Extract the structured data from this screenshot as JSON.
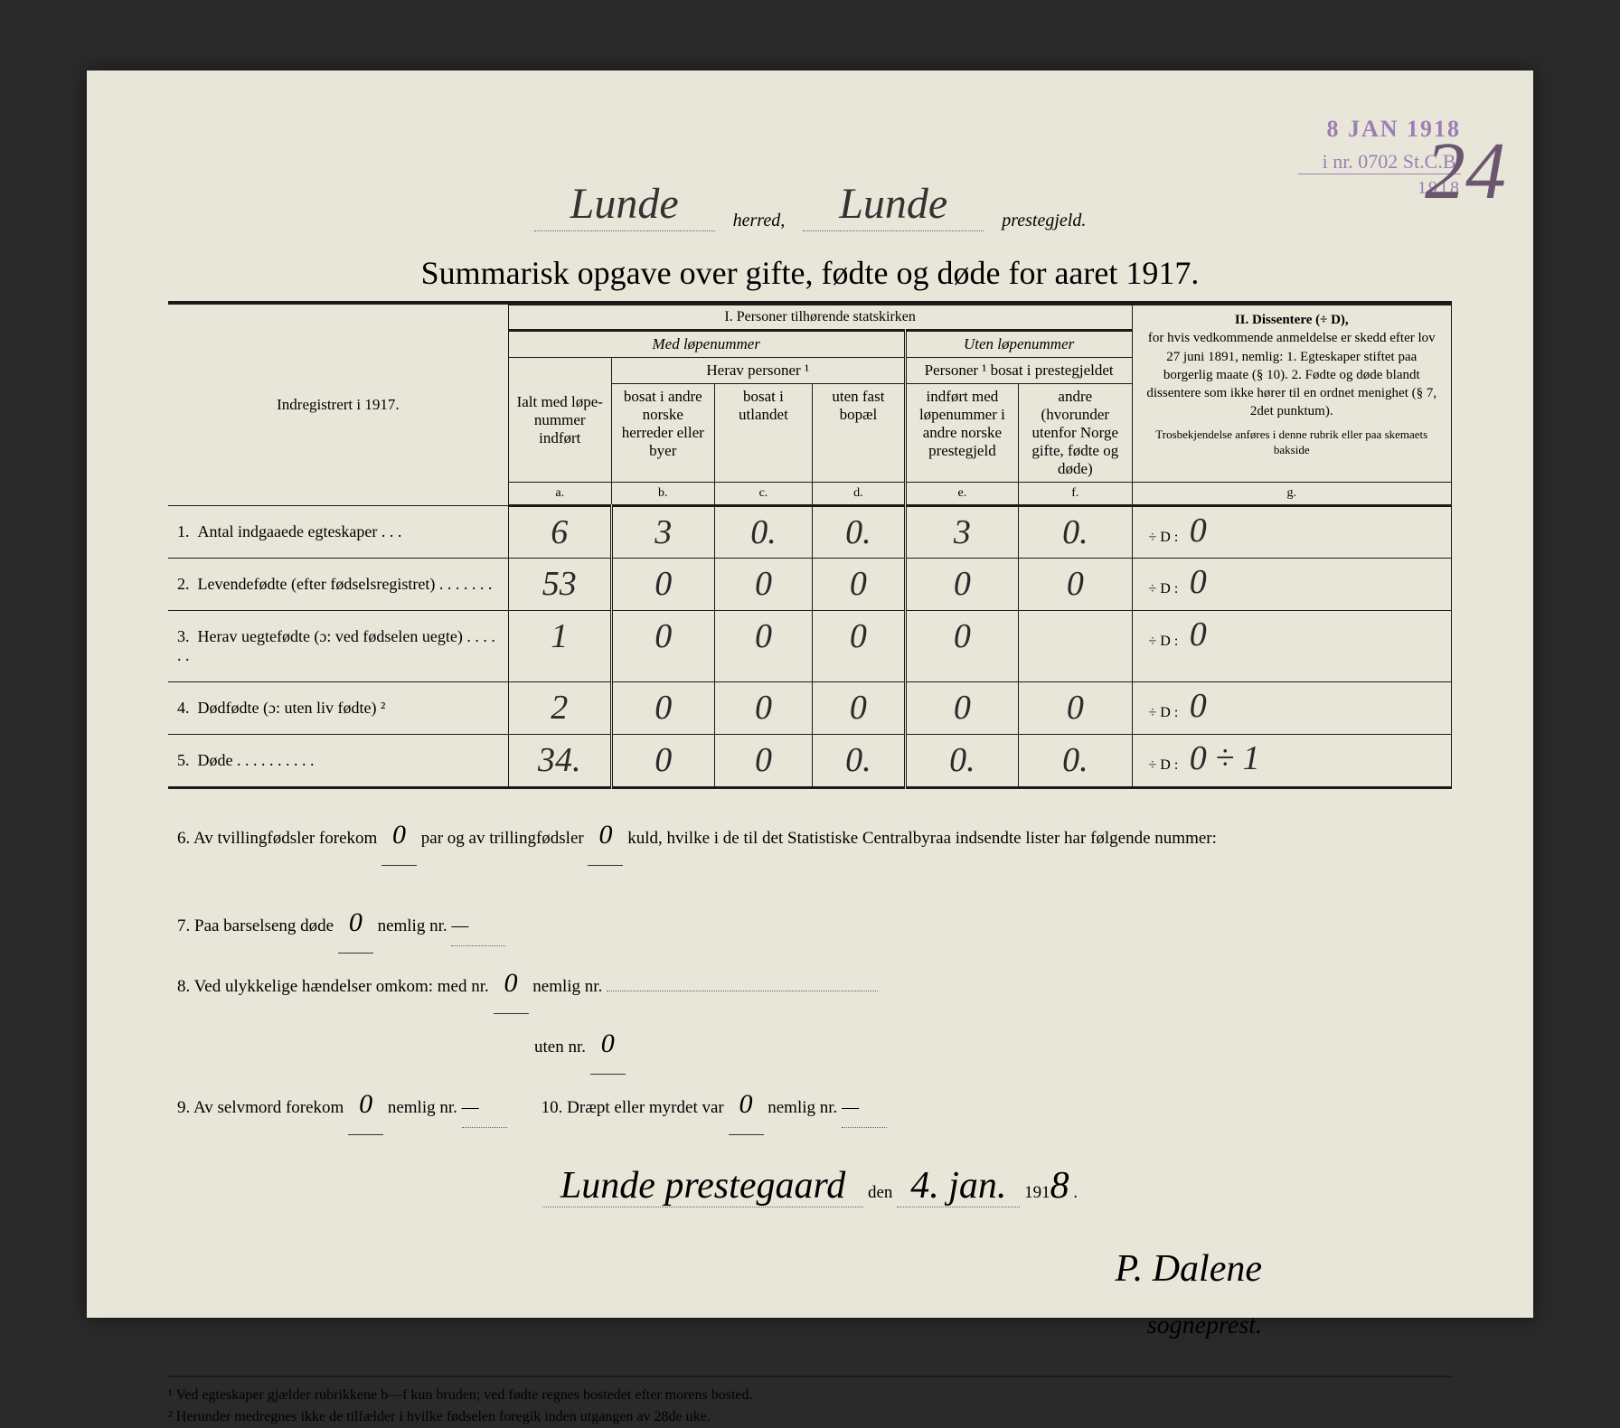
{
  "stamp": {
    "date": "8 JAN 1918",
    "ref": "i nr. 0702 St.C.B.",
    "year_below": "1918"
  },
  "corner_number": "24",
  "header": {
    "herred": "Lunde",
    "herred_label": "herred,",
    "prestegjeld": "Lunde",
    "prestegjeld_label": "prestegjeld."
  },
  "title": "Summarisk opgave over gifte, fødte og døde for aaret 1917.",
  "columns": {
    "indreg": "Indregistrert i 1917.",
    "sec1": "I.  Personer tilhørende statskirken",
    "med": "Med løpenummer",
    "uten": "Uten løpenummer",
    "ialt": "Ialt med løpe-nummer indført",
    "herav": "Herav personer ¹",
    "pers_bosat": "Personer ¹ bosat i prestegjeldet",
    "b": "bosat i andre norske herreder eller byer",
    "c": "bosat i utlandet",
    "d": "uten fast bopæl",
    "e": "indført med løpenummer i andre norske prestegjeld",
    "f": "andre (hvorunder utenfor Norge gifte, fødte og døde)",
    "sec2_title": "II.  Dissentere (÷ D),",
    "sec2_body": "for hvis vedkommende anmeldelse er skedd efter lov 27 juni 1891, nemlig: 1. Egteskaper stiftet paa borgerlig maate (§ 10). 2. Fødte og døde blandt dissentere som ikke hører til en ordnet menighet (§ 7, 2det punktum).",
    "sec2_foot": "Trosbekjendelse anføres i denne rubrik eller paa skemaets bakside",
    "letters": {
      "a": "a.",
      "b": "b.",
      "c": "c.",
      "d": "d.",
      "e": "e.",
      "f": "f.",
      "g": "g."
    }
  },
  "rows": [
    {
      "n": "1.",
      "label": "Antal indgaaede egteskaper . . .",
      "a": "6",
      "b": "3",
      "c": "0.",
      "d": "0.",
      "e": "3",
      "f": "0.",
      "g": "0"
    },
    {
      "n": "2.",
      "label": "Levendefødte (efter fødselsregistret) . . . . . . .",
      "a": "53",
      "b": "0",
      "c": "0",
      "d": "0",
      "e": "0",
      "f": "0",
      "g": "0"
    },
    {
      "n": "3.",
      "label": "Herav uegtefødte (ɔ: ved fødselen uegte) . . . . . .",
      "a": "1",
      "b": "0",
      "c": "0",
      "d": "0",
      "e": "0",
      "f": "",
      "g": "0"
    },
    {
      "n": "4.",
      "label": "Dødfødte (ɔ: uten liv fødte) ²",
      "a": "2",
      "b": "0",
      "c": "0",
      "d": "0",
      "e": "0",
      "f": "0",
      "g": "0"
    },
    {
      "n": "5.",
      "label": "Døde . . . . . . . . . .",
      "a": "34.",
      "b": "0",
      "c": "0",
      "d": "0.",
      "e": "0.",
      "f": "0.",
      "g": "0  ÷ 1"
    }
  ],
  "plus_d_label": "÷ D :",
  "q6": {
    "pre": "6.   Av tvillingfødsler forekom",
    "v1": "0",
    "mid": "par og av trillingfødsler",
    "v2": "0",
    "post": "kuld, hvilke i de til det Statistiske Centralbyraa indsendte lister har følgende nummer:"
  },
  "q7": {
    "pre": "7.   Paa barselseng døde",
    "v": "0",
    "mid": "nemlig nr.",
    "dash": "—"
  },
  "q8": {
    "pre": "8.   Ved ulykkelige hændelser omkom:  med nr.",
    "v1": "0",
    "mid": "nemlig nr.",
    "line2": "uten nr.",
    "v2": "0"
  },
  "q9": {
    "pre": "9.   Av selvmord forekom",
    "v": "0",
    "mid": "nemlig nr.",
    "dash": "—"
  },
  "q10": {
    "pre": "10.   Dræpt eller myrdet var",
    "v": "0",
    "mid": "nemlig nr.",
    "dash": "—"
  },
  "sig": {
    "place": "Lunde prestegaard",
    "den": "den",
    "date": "4. jan.",
    "year_pre": "191",
    "year_hw": "8",
    "name": "P. Dalene",
    "title": "sogneprest."
  },
  "footnotes": {
    "f1": "¹ Ved egteskaper gjælder rubrikkene b—f kun bruden; ved fødte regnes bostedet efter morens bosted.",
    "f2": "² Herunder medregnes ikke de tilfælder i hvilke fødselen foregik inden utgangen av 28de uke."
  }
}
